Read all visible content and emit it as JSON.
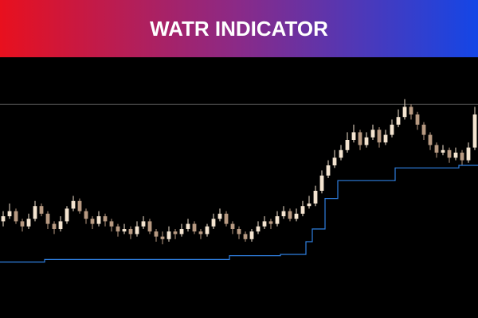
{
  "chart_data": {
    "type": "candlestick",
    "title": "WATR INDICATOR",
    "open": [
      38,
      40,
      42,
      38,
      36,
      39,
      44,
      41,
      37,
      35,
      38,
      43,
      46,
      42,
      39,
      37,
      40,
      38,
      36,
      34,
      35,
      33,
      36,
      38,
      34,
      32,
      31,
      34,
      33,
      35,
      37,
      34,
      33,
      36,
      39,
      41,
      37,
      35,
      33,
      31,
      34,
      36,
      38,
      37,
      40,
      42,
      39,
      41,
      44,
      45,
      50,
      56,
      60,
      63,
      66,
      70,
      73,
      68,
      71,
      74,
      69,
      72,
      76,
      79,
      83,
      80,
      76,
      72,
      68,
      65,
      66,
      63,
      65,
      62,
      67
    ],
    "high": [
      42,
      45,
      43,
      39,
      41,
      46,
      45,
      42,
      38,
      40,
      44,
      48,
      47,
      43,
      40,
      42,
      41,
      39,
      37,
      37,
      36,
      38,
      40,
      39,
      35,
      34,
      36,
      35,
      37,
      39,
      38,
      35,
      37,
      41,
      43,
      42,
      38,
      36,
      34,
      35,
      38,
      40,
      39,
      42,
      44,
      43,
      43,
      46,
      48,
      52,
      58,
      62,
      66,
      68,
      73,
      76,
      74,
      73,
      76,
      75,
      74,
      78,
      82,
      86,
      84,
      81,
      77,
      73,
      69,
      68,
      67,
      67,
      66,
      69,
      83
    ],
    "low": [
      36,
      39,
      37,
      34,
      35,
      38,
      40,
      35,
      33,
      34,
      37,
      42,
      41,
      37,
      35,
      36,
      36,
      34,
      32,
      33,
      31,
      32,
      35,
      33,
      30,
      29,
      30,
      31,
      32,
      34,
      33,
      31,
      32,
      35,
      38,
      36,
      33,
      31,
      30,
      30,
      33,
      35,
      35,
      36,
      39,
      38,
      38,
      40,
      43,
      44,
      49,
      55,
      59,
      62,
      65,
      69,
      66,
      67,
      70,
      67,
      68,
      71,
      75,
      78,
      78,
      74,
      70,
      66,
      63,
      64,
      61,
      62,
      60,
      61,
      66
    ],
    "close": [
      40,
      42,
      38,
      36,
      39,
      44,
      41,
      37,
      35,
      38,
      43,
      46,
      42,
      39,
      37,
      40,
      38,
      36,
      34,
      35,
      33,
      36,
      38,
      34,
      32,
      31,
      34,
      33,
      35,
      37,
      34,
      33,
      36,
      39,
      41,
      37,
      35,
      33,
      31,
      34,
      36,
      38,
      37,
      40,
      42,
      39,
      41,
      44,
      45,
      50,
      56,
      60,
      63,
      66,
      70,
      73,
      68,
      71,
      74,
      69,
      72,
      76,
      79,
      83,
      80,
      76,
      72,
      68,
      65,
      66,
      63,
      65,
      62,
      67,
      80
    ],
    "up_color": "#f4e4d0",
    "down_color": "#b89a82",
    "watr": {
      "color": "#2f7fe0",
      "values": [
        22,
        22,
        22,
        22,
        22,
        22,
        22,
        23,
        23,
        23,
        23,
        23,
        23,
        23,
        23,
        23,
        23,
        23,
        23,
        23,
        23,
        23,
        23,
        23,
        23,
        23,
        23,
        23,
        23,
        23,
        23,
        23,
        23,
        23,
        23,
        23,
        24.5,
        24.5,
        24.5,
        24.5,
        24.5,
        24.5,
        24.5,
        24.5,
        25,
        25,
        25,
        25,
        30,
        35,
        35,
        47,
        47,
        54,
        54,
        54,
        54,
        54,
        54,
        54,
        54,
        54,
        59,
        59,
        59,
        59,
        59,
        59,
        59,
        59,
        59,
        59,
        60,
        60,
        60
      ]
    },
    "reference_line": {
      "value": 84,
      "color": "#555555"
    },
    "ylim": [
      0,
      100
    ]
  }
}
